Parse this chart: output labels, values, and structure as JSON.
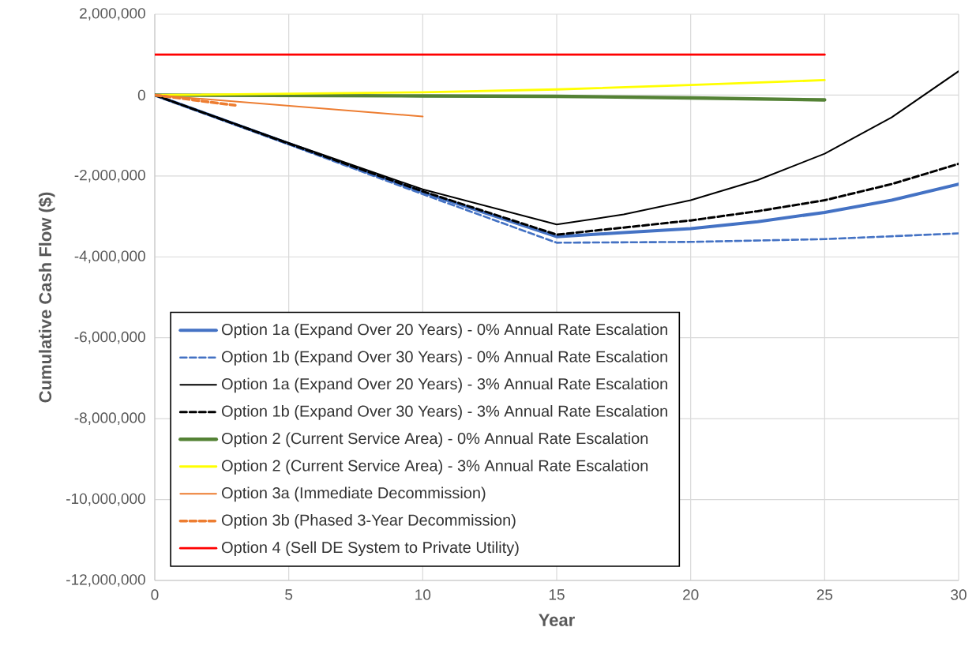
{
  "chart_data": {
    "type": "line",
    "xlabel": "Year",
    "ylabel": "Cumulative Cash Flow ($)",
    "xlim": [
      0,
      30
    ],
    "xticks": [
      0,
      5,
      10,
      15,
      20,
      25,
      30
    ],
    "ylim": [
      -12000000,
      2000000
    ],
    "yticks": [
      {
        "value": -12000000,
        "label": "-12,000,000"
      },
      {
        "value": -10000000,
        "label": "-10,000,000"
      },
      {
        "value": -8000000,
        "label": "-8,000,000"
      },
      {
        "value": -6000000,
        "label": "-6,000,000"
      },
      {
        "value": -4000000,
        "label": "-4,000,000"
      },
      {
        "value": -2000000,
        "label": "-2,000,000"
      },
      {
        "value": 0,
        "label": "0"
      },
      {
        "value": 2000000,
        "label": "2,000,000"
      }
    ],
    "grid": true,
    "legend": "bottom left",
    "marker": "none",
    "series": [
      {
        "name": "Option 1a (Expand Over 20 Years) - 0% Annual Rate Escalation",
        "color": "#4472c4",
        "line_style": "solid",
        "x": [
          0,
          5,
          10,
          15,
          17.5,
          20,
          22.5,
          25,
          27.5,
          30
        ],
        "values": [
          0,
          -1200000,
          -2400000,
          -3500000,
          -3400000,
          -3300000,
          -3130000,
          -2900000,
          -2600000,
          -2200000
        ]
      },
      {
        "name": "Option 1b (Expand Over 30 Years) - 0% Annual Rate Escalation",
        "color": "#4472c4",
        "line_style": "dashed",
        "x": [
          0,
          5,
          10,
          15,
          20,
          25,
          30
        ],
        "values": [
          0,
          -1220000,
          -2450000,
          -3650000,
          -3630000,
          -3560000,
          -3420000
        ]
      },
      {
        "name": "Option 1a (Expand Over 20 Years) - 3% Annual Rate Escalation",
        "color": "#000000",
        "line_style": "solid",
        "x": [
          0,
          5,
          10,
          15,
          17.5,
          20,
          22.5,
          25,
          27.5,
          30
        ],
        "values": [
          0,
          -1180000,
          -2330000,
          -3200000,
          -2950000,
          -2600000,
          -2100000,
          -1450000,
          -550000,
          590000
        ]
      },
      {
        "name": "Option 1b (Expand Over 30 Years) - 3% Annual Rate Escalation",
        "color": "#000000",
        "line_style": "dashed",
        "x": [
          0,
          5,
          10,
          15,
          20,
          22.5,
          25,
          27.5,
          30
        ],
        "values": [
          0,
          -1200000,
          -2380000,
          -3450000,
          -3100000,
          -2870000,
          -2600000,
          -2200000,
          -1700000
        ]
      },
      {
        "name": "Option 2 (Current Service Area) - 0% Annual Rate Escalation",
        "color": "#548235",
        "line_style": "solid",
        "x": [
          0,
          10,
          15,
          20,
          25
        ],
        "values": [
          0,
          -20000,
          -30000,
          -70000,
          -120000
        ]
      },
      {
        "name": "Option 2 (Current Service Area) - 3% Annual Rate Escalation",
        "color": "#ffff00",
        "line_style": "solid",
        "x": [
          0,
          10,
          15,
          20,
          25
        ],
        "values": [
          0,
          70000,
          140000,
          250000,
          370000
        ]
      },
      {
        "name": "Option 3a (Immediate Decommission)",
        "color": "#ed7d31",
        "line_style": "solid",
        "x": [
          0,
          10
        ],
        "values": [
          0,
          -530000
        ]
      },
      {
        "name": "Option 3b (Phased 3-Year Decommission)",
        "color": "#ed7d31",
        "line_style": "dashed",
        "x": [
          0,
          1,
          2,
          3
        ],
        "values": [
          0,
          -80000,
          -170000,
          -250000
        ]
      },
      {
        "name": "Option 4 (Sell DE System to Private Utility)",
        "color": "#ff0000",
        "line_style": "solid",
        "x": [
          0,
          25
        ],
        "values": [
          1000000,
          1000000
        ]
      }
    ]
  }
}
